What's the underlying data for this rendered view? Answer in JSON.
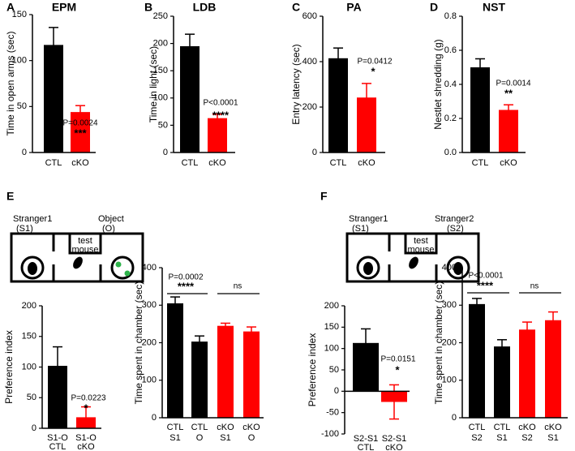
{
  "panel_labels": [
    "A",
    "B",
    "C",
    "D",
    "E",
    "F"
  ],
  "diagrams": [
    {
      "left_label": [
        "Stranger1",
        "(S1)"
      ],
      "right_label": [
        "Object",
        "(O)"
      ],
      "center_label": [
        "test",
        "mouse"
      ]
    },
    {
      "left_label": [
        "Stranger1",
        "(S1)"
      ],
      "right_label": [
        "Stranger2",
        "(S2)"
      ],
      "center_label": [
        "test",
        "mouse"
      ]
    }
  ],
  "chart_data": [
    {
      "type": "bar",
      "title": "EPM",
      "ylabel": "Time in open arms (sec)",
      "categories": [
        "CTL",
        "cKO"
      ],
      "values": [
        117,
        44
      ],
      "errors": [
        19,
        7
      ],
      "colors": [
        "#000000",
        "#ff0000"
      ],
      "ylim": [
        0,
        150
      ],
      "yticks": [
        0,
        50,
        100,
        150
      ],
      "annotations": [
        "P=0.0024",
        "***"
      ]
    },
    {
      "type": "bar",
      "title": "LDB",
      "ylabel": "Time in light (sec)",
      "categories": [
        "CTL",
        "cKO"
      ],
      "values": [
        195,
        63
      ],
      "errors": [
        22,
        7
      ],
      "colors": [
        "#000000",
        "#ff0000"
      ],
      "ylim": [
        0,
        250
      ],
      "yticks": [
        0,
        50,
        100,
        150,
        200,
        250
      ],
      "annotations": [
        "P<0.0001",
        "****"
      ]
    },
    {
      "type": "bar",
      "title": "PA",
      "ylabel": "Entry latency (sec)",
      "categories": [
        "CTL",
        "cKO"
      ],
      "values": [
        415,
        242
      ],
      "errors": [
        45,
        62
      ],
      "colors": [
        "#000000",
        "#ff0000"
      ],
      "ylim": [
        0,
        600
      ],
      "yticks": [
        0,
        200,
        400,
        600
      ],
      "annotations": [
        "P=0.0412",
        "*"
      ]
    },
    {
      "type": "bar",
      "title": "NST",
      "ylabel": "Nestlet shredding (g)",
      "categories": [
        "CTL",
        "cKO"
      ],
      "values": [
        0.5,
        0.25
      ],
      "errors": [
        0.05,
        0.03
      ],
      "colors": [
        "#000000",
        "#ff0000"
      ],
      "ylim": [
        0,
        0.8
      ],
      "yticks": [
        {
          "value": 0,
          "label": "0.0"
        },
        0.2,
        0.4,
        0.6,
        0.8
      ],
      "annotations": [
        "P=0.0014",
        "**"
      ]
    },
    {
      "type": "bar",
      "ylabel": "Preference index",
      "categories": [
        [
          "S1-O",
          "CTL"
        ],
        [
          "S1-O",
          "cKO"
        ]
      ],
      "values": [
        102,
        18
      ],
      "errors": [
        31,
        17
      ],
      "colors": [
        "#000000",
        "#ff0000"
      ],
      "ylim": [
        0,
        200
      ],
      "yticks": [
        0,
        50,
        100,
        150,
        200
      ],
      "annotations": [
        "P=0.0223",
        "*"
      ]
    },
    {
      "type": "bar",
      "ylabel": "Time spent in chamber (sec)",
      "categories": [
        [
          "CTL",
          "S1"
        ],
        [
          "CTL",
          "O"
        ],
        [
          "cKO",
          "S1"
        ],
        [
          "cKO",
          "O"
        ]
      ],
      "values": [
        305,
        203,
        245,
        230
      ],
      "errors": [
        17,
        15,
        7,
        12
      ],
      "colors": [
        "#000000",
        "#000000",
        "#ff0000",
        "#ff0000"
      ],
      "ylim": [
        0,
        400
      ],
      "yticks": [
        0,
        100,
        200,
        300,
        400
      ],
      "annotations": [
        "P=0.0002",
        "****",
        "ns"
      ]
    },
    {
      "type": "bar",
      "ylabel": "Preference index",
      "categories": [
        [
          "S2-S1",
          "CTL"
        ],
        [
          "S2-S1",
          "cKO"
        ]
      ],
      "values": [
        113,
        -25
      ],
      "errors": [
        33,
        40
      ],
      "colors": [
        "#000000",
        "#ff0000"
      ],
      "ylim": [
        -100,
        200
      ],
      "yticks": [
        -100,
        -50,
        0,
        50,
        100,
        150,
        200
      ],
      "annotations": [
        "P=0.0151",
        "*"
      ]
    },
    {
      "type": "bar",
      "ylabel": "Time spent in chamber (sec)",
      "categories": [
        [
          "CTL",
          "S2"
        ],
        [
          "CTL",
          "S1"
        ],
        [
          "cKO",
          "S2"
        ],
        [
          "cKO",
          "S1"
        ]
      ],
      "values": [
        303,
        190,
        235,
        260
      ],
      "errors": [
        15,
        18,
        20,
        22
      ],
      "colors": [
        "#000000",
        "#000000",
        "#ff0000",
        "#ff0000"
      ],
      "ylim": [
        0,
        400
      ],
      "yticks": [
        0,
        100,
        200,
        300,
        400
      ],
      "annotations": [
        "P<0.0001",
        "****",
        "ns"
      ]
    }
  ]
}
